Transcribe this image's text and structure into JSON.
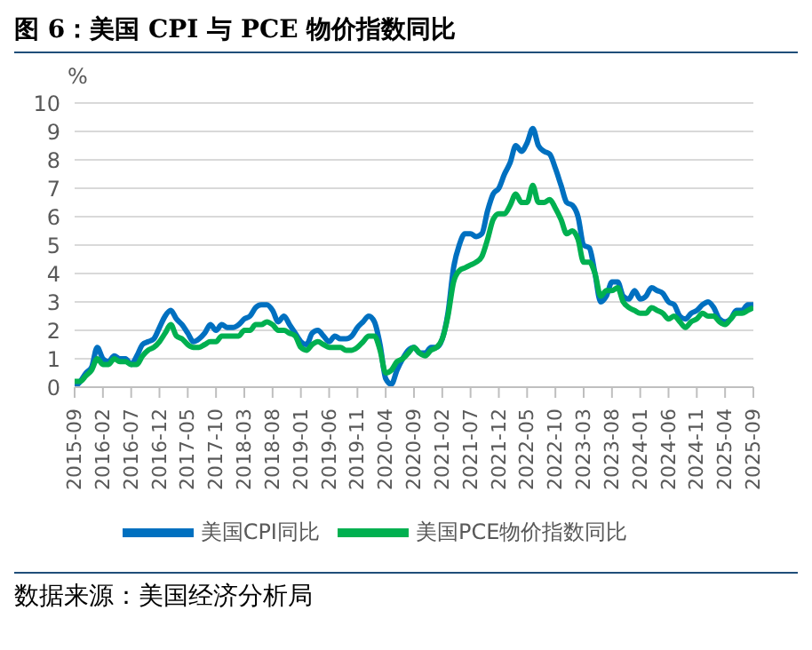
{
  "chart_data": {
    "type": "line",
    "title": "图 6：美国 CPI 与 PCE 物价指数同比",
    "ylabel": "%",
    "categories": [
      "2015-09",
      null,
      null,
      null,
      null,
      "2016-02",
      null,
      null,
      null,
      null,
      "2016-07",
      null,
      null,
      null,
      null,
      "2016-12",
      null,
      null,
      null,
      null,
      "2017-05",
      null,
      null,
      null,
      null,
      "2017-10",
      null,
      null,
      null,
      null,
      "2018-03",
      null,
      null,
      null,
      null,
      "2018-08",
      null,
      null,
      null,
      null,
      "2019-01",
      null,
      null,
      null,
      null,
      "2019-06",
      null,
      null,
      null,
      null,
      "2019-11",
      null,
      null,
      null,
      null,
      "2020-04",
      null,
      null,
      null,
      null,
      "2020-09",
      null,
      null,
      null,
      null,
      "2021-02",
      null,
      null,
      null,
      null,
      "2021-07",
      null,
      null,
      null,
      null,
      "2021-12",
      null,
      null,
      null,
      null,
      "2022-05",
      null,
      null,
      null,
      null,
      "2022-10",
      null,
      null,
      null,
      null,
      "2023-03",
      null,
      null,
      null,
      null,
      "2023-08",
      null,
      null,
      null,
      null,
      "2024-01",
      null,
      null,
      null,
      null,
      "2024-06",
      null,
      null,
      null,
      null,
      "2024-11",
      null,
      null,
      null,
      null,
      "2025-04",
      null,
      null,
      null,
      null,
      "2025-09"
    ],
    "series": [
      {
        "name": "美国CPI同比",
        "color": "#0070c0",
        "values": [
          0.0,
          0.2,
          0.5,
          0.7,
          1.4,
          1.0,
          0.9,
          1.1,
          1.0,
          1.0,
          0.8,
          1.1,
          1.5,
          1.6,
          1.7,
          2.1,
          2.5,
          2.7,
          2.4,
          2.2,
          1.9,
          1.6,
          1.7,
          1.9,
          2.2,
          2.0,
          2.2,
          2.1,
          2.1,
          2.2,
          2.4,
          2.5,
          2.8,
          2.9,
          2.9,
          2.7,
          2.3,
          2.5,
          2.2,
          1.9,
          1.6,
          1.5,
          1.9,
          2.0,
          1.8,
          1.6,
          1.8,
          1.7,
          1.7,
          1.8,
          2.1,
          2.3,
          2.5,
          2.3,
          1.5,
          0.3,
          0.1,
          0.6,
          1.0,
          1.3,
          1.4,
          1.2,
          1.2,
          1.4,
          1.4,
          1.7,
          2.6,
          4.2,
          5.0,
          5.4,
          5.4,
          5.3,
          5.4,
          6.2,
          6.8,
          7.0,
          7.5,
          7.9,
          8.5,
          8.3,
          8.6,
          9.1,
          8.5,
          8.3,
          8.2,
          7.7,
          7.1,
          6.5,
          6.4,
          6.0,
          5.0,
          4.9,
          4.0,
          3.0,
          3.2,
          3.7,
          3.7,
          3.2,
          3.1,
          3.4,
          3.1,
          3.2,
          3.5,
          3.4,
          3.3,
          3.0,
          2.9,
          2.5,
          2.4,
          2.6,
          2.7,
          2.9,
          3.0,
          2.8,
          2.4,
          2.3,
          2.4,
          2.7,
          2.7,
          2.9,
          2.9
        ]
      },
      {
        "name": "美国PCE物价指数同比",
        "color": "#00b050",
        "values": [
          0.2,
          0.2,
          0.4,
          0.6,
          1.0,
          0.8,
          0.8,
          1.0,
          0.9,
          0.9,
          0.8,
          0.8,
          1.1,
          1.3,
          1.4,
          1.6,
          1.9,
          2.2,
          1.8,
          1.7,
          1.5,
          1.4,
          1.4,
          1.5,
          1.6,
          1.6,
          1.8,
          1.8,
          1.8,
          1.8,
          2.0,
          2.0,
          2.2,
          2.2,
          2.3,
          2.2,
          2.0,
          2.0,
          1.9,
          1.8,
          1.4,
          1.3,
          1.5,
          1.6,
          1.5,
          1.4,
          1.4,
          1.4,
          1.3,
          1.3,
          1.4,
          1.6,
          1.8,
          1.8,
          1.3,
          0.5,
          0.6,
          0.9,
          1.0,
          1.2,
          1.4,
          1.2,
          1.1,
          1.3,
          1.4,
          1.7,
          2.5,
          3.7,
          4.1,
          4.2,
          4.3,
          4.4,
          4.6,
          5.2,
          5.9,
          6.1,
          6.1,
          6.4,
          6.8,
          6.5,
          6.5,
          7.1,
          6.5,
          6.5,
          6.6,
          6.3,
          5.9,
          5.4,
          5.5,
          5.2,
          4.4,
          4.4,
          4.0,
          3.2,
          3.4,
          3.4,
          3.5,
          3.0,
          2.8,
          2.7,
          2.6,
          2.6,
          2.8,
          2.7,
          2.6,
          2.4,
          2.5,
          2.3,
          2.1,
          2.3,
          2.4,
          2.6,
          2.5,
          2.5,
          2.3,
          2.2,
          2.4,
          2.6,
          2.6,
          2.7,
          2.8
        ]
      }
    ],
    "ylim": [
      0,
      10
    ],
    "yticks": [
      0,
      1,
      2,
      3,
      4,
      5,
      6,
      7,
      8,
      9,
      10
    ],
    "grid": "y",
    "legend": "bottom",
    "annotations": [
      "数据来源：美国经济分析局"
    ]
  }
}
